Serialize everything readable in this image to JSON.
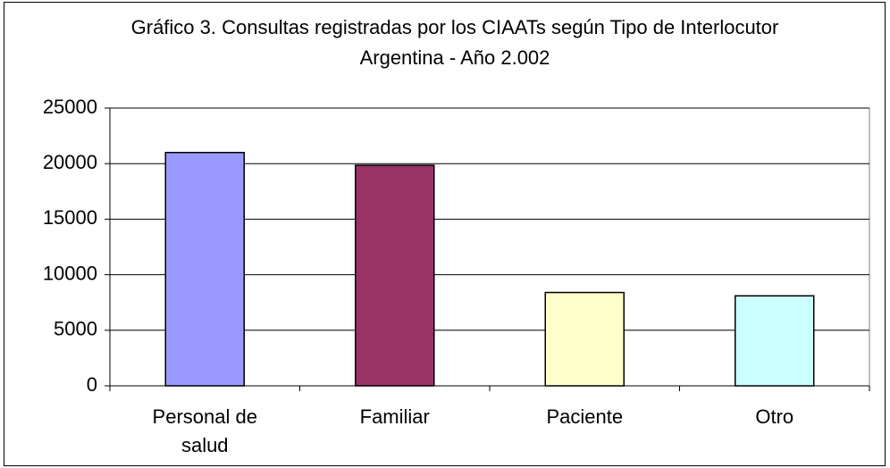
{
  "chart_data": {
    "type": "bar",
    "title": "Gráfico 3. Consultas registradas por los CIAATs según Tipo de Interlocutor",
    "subtitle": "Argentina - Año 2.002",
    "categories": [
      "Personal de salud",
      "Familiar",
      "Paciente",
      "Otro"
    ],
    "values": [
      21000,
      19850,
      8400,
      8100
    ],
    "colors": [
      "#9999ff",
      "#993366",
      "#ffffcc",
      "#ccffff"
    ],
    "ylim": [
      0,
      25000
    ],
    "yticks": [
      0,
      5000,
      10000,
      15000,
      20000,
      25000
    ],
    "grid": true
  }
}
